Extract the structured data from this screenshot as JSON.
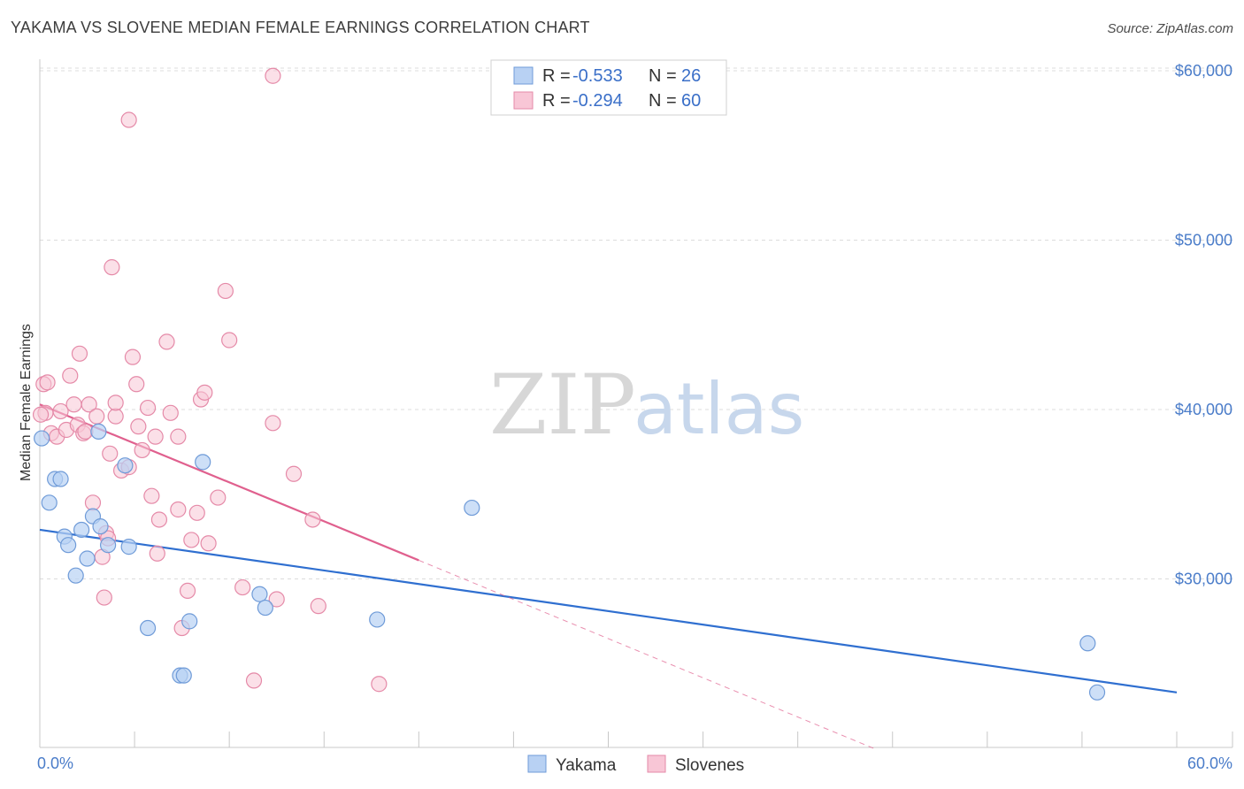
{
  "header": {
    "title": "YAKAMA VS SLOVENE MEDIAN FEMALE EARNINGS CORRELATION CHART",
    "source": "Source: ZipAtlas.com"
  },
  "watermark": {
    "zip": "ZIP",
    "atlas": "atlas"
  },
  "colors": {
    "yakama_fill": "#b8d1f3",
    "yakama_stroke": "#6f9bd8",
    "yakama_line": "#2f6fd0",
    "slovene_fill": "#f8c6d6",
    "slovene_stroke": "#e58aa8",
    "slovene_line": "#e0608e",
    "tick_text": "#4a7cc9",
    "grid": "#dcdcdc"
  },
  "legend": {
    "rows": [
      {
        "r_label": "R =",
        "r_value": "-0.533",
        "n_label": "N =",
        "n_value": "26"
      },
      {
        "r_label": "R =",
        "r_value": "-0.294",
        "n_label": "N =",
        "n_value": "60"
      }
    ]
  },
  "bottom_legend": {
    "yakama": "Yakama",
    "slovenes": "Slovenes"
  },
  "chart_data": {
    "type": "scatter",
    "title": "YAKAMA VS SLOVENE MEDIAN FEMALE EARNINGS CORRELATION CHART",
    "xlabel": "",
    "ylabel": "Median Female Earnings",
    "xlim": [
      0,
      60
    ],
    "ylim": [
      20000,
      62000
    ],
    "x_tick_labels": [
      "0.0%",
      "60.0%"
    ],
    "y_ticks": [
      30000,
      40000,
      50000,
      60000
    ],
    "y_tick_labels": [
      "$30,000",
      "$40,000",
      "$50,000",
      "$60,000"
    ],
    "grid": true,
    "series": [
      {
        "name": "Yakama",
        "points": [
          [
            0.1,
            38300
          ],
          [
            0.5,
            34500
          ],
          [
            0.8,
            35900
          ],
          [
            1.1,
            35900
          ],
          [
            1.3,
            32500
          ],
          [
            1.5,
            32000
          ],
          [
            1.9,
            30200
          ],
          [
            2.2,
            32900
          ],
          [
            2.5,
            31200
          ],
          [
            2.8,
            33700
          ],
          [
            3.1,
            38700
          ],
          [
            3.2,
            33100
          ],
          [
            3.6,
            32000
          ],
          [
            4.5,
            36700
          ],
          [
            4.7,
            31900
          ],
          [
            5.7,
            27100
          ],
          [
            7.4,
            24300
          ],
          [
            7.6,
            24300
          ],
          [
            7.9,
            27500
          ],
          [
            8.6,
            36900
          ],
          [
            11.6,
            29100
          ],
          [
            11.9,
            28300
          ],
          [
            17.8,
            27600
          ],
          [
            22.8,
            34200
          ],
          [
            55.3,
            26200
          ],
          [
            55.8,
            23300
          ]
        ],
        "trend": {
          "x": [
            0,
            60
          ],
          "y": [
            32900,
            23300
          ]
        }
      },
      {
        "name": "Slovenes",
        "points": [
          [
            0.2,
            41500
          ],
          [
            0.3,
            39800
          ],
          [
            0.4,
            41600
          ],
          [
            0.6,
            38600
          ],
          [
            0.9,
            38400
          ],
          [
            1.1,
            39900
          ],
          [
            1.4,
            38800
          ],
          [
            1.6,
            42000
          ],
          [
            1.8,
            40300
          ],
          [
            2.0,
            39100
          ],
          [
            2.1,
            43300
          ],
          [
            2.3,
            38600
          ],
          [
            2.4,
            38700
          ],
          [
            2.6,
            40300
          ],
          [
            2.8,
            34500
          ],
          [
            3.0,
            39600
          ],
          [
            3.3,
            31300
          ],
          [
            3.4,
            28900
          ],
          [
            3.5,
            32700
          ],
          [
            3.6,
            32400
          ],
          [
            3.7,
            37400
          ],
          [
            3.8,
            48400
          ],
          [
            4.0,
            39600
          ],
          [
            4.0,
            40400
          ],
          [
            4.3,
            36400
          ],
          [
            4.7,
            36600
          ],
          [
            4.7,
            57100
          ],
          [
            4.9,
            43100
          ],
          [
            5.1,
            41500
          ],
          [
            5.2,
            39000
          ],
          [
            5.4,
            37600
          ],
          [
            5.7,
            40100
          ],
          [
            5.9,
            34900
          ],
          [
            6.1,
            38400
          ],
          [
            6.2,
            31500
          ],
          [
            6.3,
            33500
          ],
          [
            6.7,
            44000
          ],
          [
            6.9,
            39800
          ],
          [
            7.3,
            38400
          ],
          [
            7.3,
            34100
          ],
          [
            7.5,
            27100
          ],
          [
            7.8,
            29300
          ],
          [
            8.0,
            32300
          ],
          [
            8.3,
            33900
          ],
          [
            8.5,
            40600
          ],
          [
            8.7,
            41000
          ],
          [
            8.9,
            32100
          ],
          [
            9.4,
            34800
          ],
          [
            9.8,
            47000
          ],
          [
            10.0,
            44100
          ],
          [
            10.7,
            29500
          ],
          [
            11.3,
            24000
          ],
          [
            12.3,
            39200
          ],
          [
            12.5,
            28800
          ],
          [
            13.4,
            36200
          ],
          [
            14.4,
            33500
          ],
          [
            14.7,
            28400
          ],
          [
            17.9,
            23800
          ],
          [
            12.3,
            59700
          ],
          [
            0.05,
            39700
          ]
        ],
        "trend_solid": {
          "x": [
            0,
            20
          ],
          "y": [
            40300,
            31100
          ]
        },
        "trend_dashed": {
          "x": [
            20,
            44
          ],
          "y": [
            31100,
            20000
          ]
        }
      }
    ]
  }
}
